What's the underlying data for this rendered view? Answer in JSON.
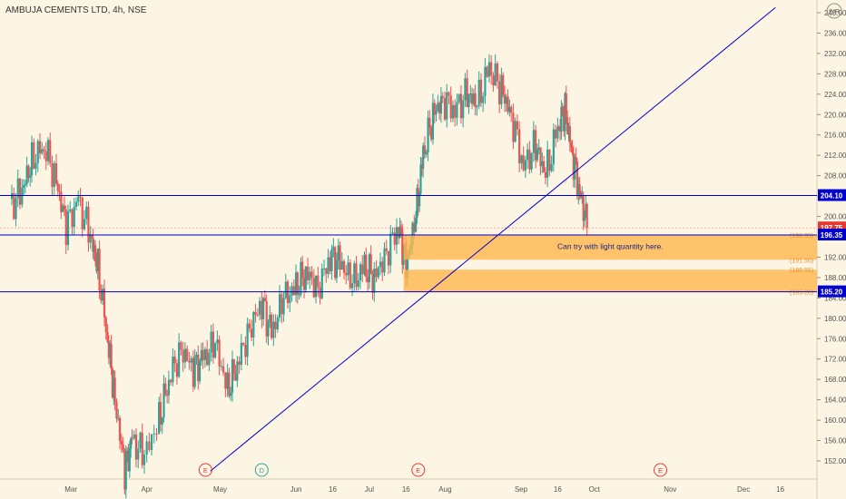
{
  "chart_data": {
    "type": "candlestick",
    "title": "AMBUJA CEMENTS LTD, 4h, NSE",
    "currency": "INR",
    "y_ticks": [
      152,
      156,
      160,
      164,
      168,
      172,
      176,
      180,
      184,
      188,
      192,
      196,
      200,
      204,
      208,
      212,
      216,
      220,
      224,
      228,
      232,
      236,
      240
    ],
    "x_ticks": [
      {
        "label": "Mar",
        "date": "2020-03-01"
      },
      {
        "label": "Apr",
        "date": "2020-04-01"
      },
      {
        "label": "May",
        "date": "2020-05-01"
      },
      {
        "label": "Jun",
        "date": "2020-06-01"
      },
      {
        "label": "16",
        "date": "2020-06-16"
      },
      {
        "label": "Jul",
        "date": "2020-07-01"
      },
      {
        "label": "16",
        "date": "2020-07-16"
      },
      {
        "label": "Aug",
        "date": "2020-08-01"
      },
      {
        "label": "Sep",
        "date": "2020-09-01"
      },
      {
        "label": "16",
        "date": "2020-09-16"
      },
      {
        "label": "Oct",
        "date": "2020-10-01"
      },
      {
        "label": "Nov",
        "date": "2020-11-01"
      },
      {
        "label": "Dec",
        "date": "2020-12-01"
      },
      {
        "label": "16",
        "date": "2020-12-16"
      }
    ],
    "price_levels": [
      {
        "value": 204.1,
        "label": "204.10",
        "color": "#0000cc"
      },
      {
        "value": 197.75,
        "label": "197.75",
        "color": "#e53935"
      },
      {
        "value": 196.35,
        "label": "196.35",
        "color": "#0000cc"
      },
      {
        "value": 185.2,
        "label": "185.20",
        "color": "#0000cc"
      }
    ],
    "annotation": "Can try with light quantity here.",
    "fib_labels": [
      "(196.35)",
      "(191.50)",
      "(189.55)",
      "(185.20)"
    ],
    "event_markers": [
      {
        "letter": "E",
        "date": "2020-04-25",
        "color": "#e53935"
      },
      {
        "letter": "D",
        "date": "2020-05-18",
        "color": "#26a69a"
      },
      {
        "letter": "E",
        "date": "2020-07-21",
        "color": "#e53935"
      },
      {
        "letter": "E",
        "date": "2020-10-28",
        "color": "#e53935"
      }
    ],
    "colors": {
      "up": "#26a69a",
      "down": "#ef5350",
      "line": "#0000cc",
      "zone": "#ffb74d",
      "background": "#fdf5e3"
    },
    "series": [
      {
        "date": "2020-02-05",
        "close": 202
      },
      {
        "date": "2020-02-10",
        "close": 205
      },
      {
        "date": "2020-02-14",
        "close": 211
      },
      {
        "date": "2020-02-19",
        "close": 214
      },
      {
        "date": "2020-02-24",
        "close": 207
      },
      {
        "date": "2020-02-28",
        "close": 198
      },
      {
        "date": "2020-03-04",
        "close": 203
      },
      {
        "date": "2020-03-09",
        "close": 196
      },
      {
        "date": "2020-03-12",
        "close": 190
      },
      {
        "date": "2020-03-16",
        "close": 176
      },
      {
        "date": "2020-03-19",
        "close": 164
      },
      {
        "date": "2020-03-23",
        "close": 150
      },
      {
        "date": "2020-03-26",
        "close": 156
      },
      {
        "date": "2020-03-31",
        "close": 153
      },
      {
        "date": "2020-04-06",
        "close": 160
      },
      {
        "date": "2020-04-10",
        "close": 168
      },
      {
        "date": "2020-04-15",
        "close": 174
      },
      {
        "date": "2020-04-20",
        "close": 170
      },
      {
        "date": "2020-04-24",
        "close": 172
      },
      {
        "date": "2020-04-29",
        "close": 175
      },
      {
        "date": "2020-05-04",
        "close": 166
      },
      {
        "date": "2020-05-08",
        "close": 171
      },
      {
        "date": "2020-05-13",
        "close": 178
      },
      {
        "date": "2020-05-18",
        "close": 183
      },
      {
        "date": "2020-05-22",
        "close": 177
      },
      {
        "date": "2020-05-27",
        "close": 184
      },
      {
        "date": "2020-06-01",
        "close": 186
      },
      {
        "date": "2020-06-05",
        "close": 189
      },
      {
        "date": "2020-06-10",
        "close": 186
      },
      {
        "date": "2020-06-15",
        "close": 192
      },
      {
        "date": "2020-06-19",
        "close": 191
      },
      {
        "date": "2020-06-24",
        "close": 187
      },
      {
        "date": "2020-06-29",
        "close": 190
      },
      {
        "date": "2020-07-03",
        "close": 188
      },
      {
        "date": "2020-07-08",
        "close": 193
      },
      {
        "date": "2020-07-13",
        "close": 198
      },
      {
        "date": "2020-07-16",
        "close": 190
      },
      {
        "date": "2020-07-20",
        "close": 200
      },
      {
        "date": "2020-07-23",
        "close": 212
      },
      {
        "date": "2020-07-27",
        "close": 220
      },
      {
        "date": "2020-07-31",
        "close": 223
      },
      {
        "date": "2020-08-05",
        "close": 221
      },
      {
        "date": "2020-08-10",
        "close": 224
      },
      {
        "date": "2020-08-14",
        "close": 222
      },
      {
        "date": "2020-08-19",
        "close": 229
      },
      {
        "date": "2020-08-24",
        "close": 225
      },
      {
        "date": "2020-08-28",
        "close": 220
      },
      {
        "date": "2020-09-02",
        "close": 210
      },
      {
        "date": "2020-09-07",
        "close": 214
      },
      {
        "date": "2020-09-11",
        "close": 208
      },
      {
        "date": "2020-09-16",
        "close": 217
      },
      {
        "date": "2020-09-19",
        "close": 221
      },
      {
        "date": "2020-09-22",
        "close": 212
      },
      {
        "date": "2020-09-25",
        "close": 205
      },
      {
        "date": "2020-09-28",
        "close": 197.75
      }
    ]
  }
}
